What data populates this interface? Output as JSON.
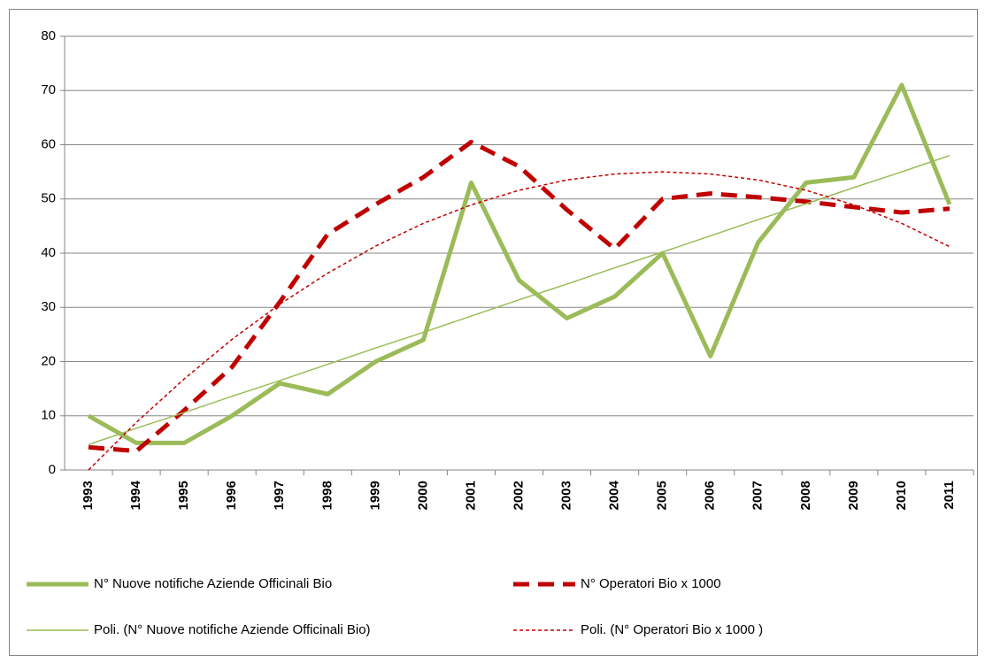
{
  "chart_data": {
    "type": "line",
    "categories": [
      "1993",
      "1994",
      "1995",
      "1996",
      "1997",
      "1998",
      "1999",
      "2000",
      "2001",
      "2002",
      "2003",
      "2004",
      "2005",
      "2006",
      "2007",
      "2008",
      "2009",
      "2010",
      "2011"
    ],
    "series": [
      {
        "name": "N° Nuove notifiche Aziende Officinali Bio",
        "color": "#9bbb59",
        "width": 5,
        "dashed": false,
        "values": [
          10,
          5,
          5,
          10,
          16,
          14,
          20,
          24,
          53,
          35,
          28,
          32,
          40,
          21,
          42,
          53,
          54,
          71,
          49
        ]
      },
      {
        "name": "N° Operatori Bio x 1000",
        "color": "#c00000",
        "width": 5,
        "dashed": true,
        "values": [
          4.2,
          3.5,
          11,
          19,
          31,
          43.5,
          49,
          54,
          60.5,
          56,
          48,
          40.8,
          50,
          51,
          50.3,
          49.5,
          48.5,
          47.5,
          48.2
        ]
      },
      {
        "name": "Poli. (N° Nuove notifiche Aziende Officinali Bio)",
        "color": "#9bbb59",
        "width": 1.5,
        "dashed": false,
        "values": [
          4.7,
          7.7,
          10.6,
          13.6,
          16.5,
          19.5,
          22.5,
          25.4,
          28.4,
          31.4,
          34.3,
          37.3,
          40.2,
          43.2,
          46.2,
          49.1,
          52.1,
          55.0,
          58.0
        ]
      },
      {
        "name": "Poli. (N° Operatori Bio x 1000 )",
        "color": "#c00000",
        "width": 1.5,
        "dashed": true,
        "values": [
          0,
          8.8,
          16.8,
          24.1,
          30.6,
          36.3,
          41.3,
          45.5,
          48.9,
          51.6,
          53.5,
          54.6,
          55,
          54.6,
          53.5,
          51.6,
          48.9,
          45.5,
          41.2
        ]
      }
    ],
    "ylim": [
      0,
      80
    ],
    "yticks": [
      0,
      10,
      20,
      30,
      40,
      50,
      60,
      70,
      80
    ],
    "grid": true
  }
}
